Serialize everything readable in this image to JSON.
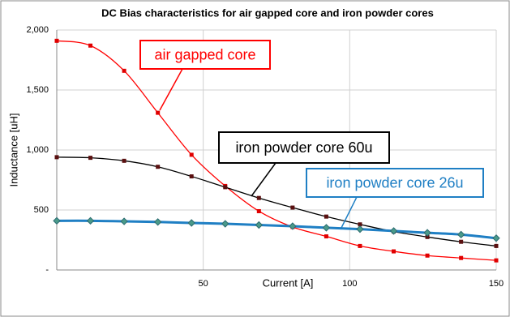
{
  "chart_data": {
    "type": "line",
    "title": "DC Bias characteristics for air gapped core and iron powder cores",
    "x_label": "Current [A]",
    "y_label": "Inductance [uH]",
    "x": [
      0,
      11.5,
      23,
      34.5,
      46,
      57.5,
      69,
      80.5,
      92,
      103.5,
      115,
      126.5,
      138,
      150
    ],
    "series": [
      {
        "name": "air gapped core",
        "color": "#ff0000",
        "marker": "square",
        "values": [
          1910,
          1870,
          1660,
          1310,
          960,
          700,
          490,
          358,
          280,
          200,
          155,
          120,
          100,
          80
        ]
      },
      {
        "name": "iron powder core 60u",
        "color": "#000000",
        "marker": "square",
        "values": [
          940,
          935,
          910,
          860,
          780,
          690,
          600,
          520,
          445,
          380,
          320,
          275,
          235,
          200
        ]
      },
      {
        "name": "iron powder core 26u",
        "color": "#1f7fc4",
        "marker": "diamond",
        "values": [
          410,
          410,
          405,
          400,
          392,
          385,
          375,
          365,
          352,
          340,
          325,
          310,
          295,
          265
        ]
      }
    ],
    "xlim": [
      0,
      150
    ],
    "xticks": [
      50,
      100,
      150
    ],
    "ylim": [
      0,
      2000
    ],
    "yticks": [
      {
        "value": 0,
        "label": "-"
      },
      500,
      {
        "value": 1000,
        "label": "1,000"
      },
      {
        "value": 1500,
        "label": "1,500"
      },
      {
        "value": 2000,
        "label": "2,000"
      }
    ],
    "grid": true
  }
}
